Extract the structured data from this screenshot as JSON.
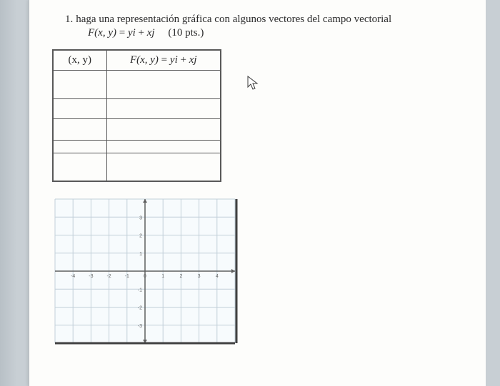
{
  "question": {
    "number": "1.",
    "text": "haga una representación gráfica con algunos vectores del campo vectorial",
    "formula_lhs": "F(x, y)",
    "formula_rhs_y": "y",
    "formula_rhs_i": "i",
    "formula_plus": " + ",
    "formula_rhs_x": "x",
    "formula_rhs_j": "j",
    "points": "(10 pts.)"
  },
  "table": {
    "header_col1": "(x, y)",
    "header_col2_lhs": "F(x, y)",
    "header_col2_eq": " = ",
    "header_col2_y": "y",
    "header_col2_i": "i",
    "header_col2_plus": " + ",
    "header_col2_x": "x",
    "header_col2_j": "j"
  },
  "chart": {
    "type": "grid",
    "xlim": [
      -5,
      5
    ],
    "ylim": [
      -4,
      4
    ],
    "xtick_labels": [
      "-4",
      "-3",
      "-2",
      "-1",
      "0",
      "1",
      "2",
      "3",
      "4"
    ],
    "ytick_labels_pos": [
      "1",
      "2",
      "3"
    ],
    "ytick_labels_neg": [
      "-1",
      "-2",
      "-3"
    ],
    "background_color": "#f7fbfd",
    "grid_color": "#c2d0d9",
    "axis_color": "#5f5f5f",
    "border_color": "#414141",
    "tick_font_size": 7,
    "tick_color": "#6a6a6a"
  },
  "colors": {
    "page_bg": "#fdfdfb",
    "outer_bg": "#c8cfd4",
    "text": "#2b2b2b"
  }
}
